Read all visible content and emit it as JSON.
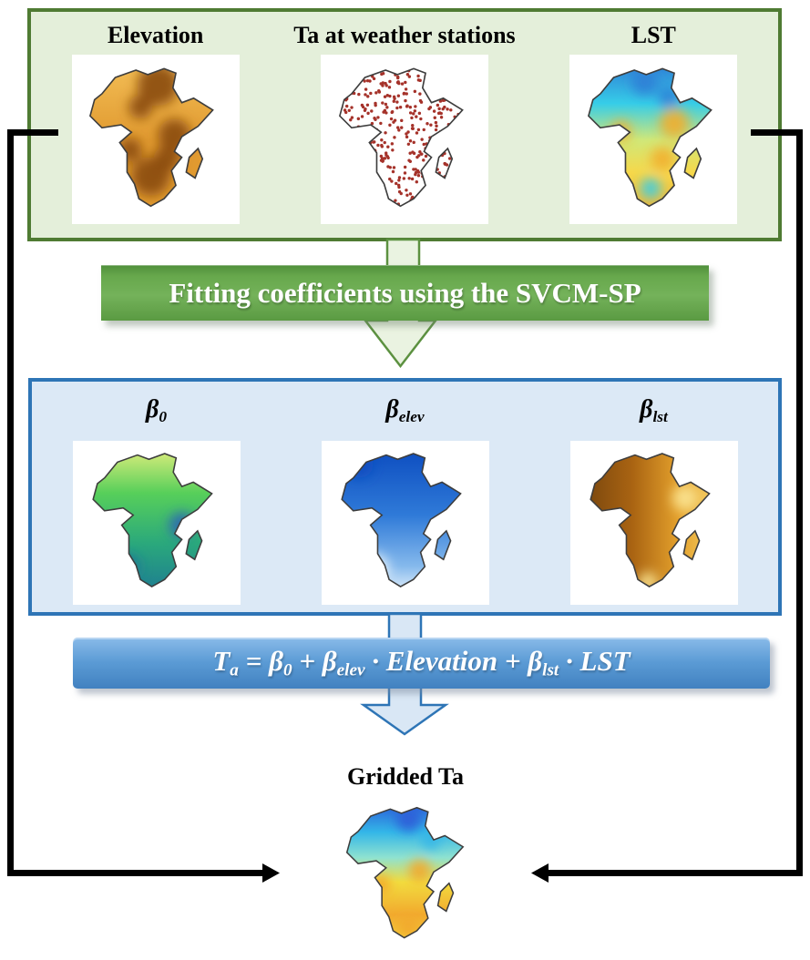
{
  "palette": {
    "green_box_border": "#4f7b33",
    "green_box_fill": "#e4efda",
    "green_banner": "#67a84c",
    "green_arrow_fill": "#eaf3e1",
    "green_arrow_stroke": "#5c9140",
    "blue_box_border": "#2e75b6",
    "blue_box_fill": "#dce9f6",
    "blue_banner": "#5b9bd5",
    "blue_arrow_fill": "#d9e7f5",
    "blue_arrow_stroke": "#2e75b6",
    "connector_black": "#000000",
    "station_dot": "#a5322a"
  },
  "inputs": {
    "maps": [
      {
        "label": "Elevation",
        "type": "elevation",
        "palette": [
          "#f2bd55",
          "#e19a30",
          "#8a4a10"
        ]
      },
      {
        "label": "Ta at weather stations",
        "type": "stations",
        "palette": [
          "#ffffff",
          "#a5322a"
        ]
      },
      {
        "label": "LST",
        "type": "lst",
        "palette": [
          "#2f7fd6",
          "#36cde8",
          "#cfe87a",
          "#f2ae2e",
          "#f6d84a"
        ]
      }
    ]
  },
  "process_banner": {
    "label": "Fitting coefficients using the SVCM-SP"
  },
  "coefficients": {
    "maps": [
      {
        "label": [
          {
            "t": "β",
            "sub": "0"
          }
        ],
        "type": "beta0",
        "palette": [
          "#dced7c",
          "#57cf5a",
          "#2aa87c",
          "#1d7a93",
          "#2b66b4"
        ]
      },
      {
        "label": [
          {
            "t": "β",
            "sub": "elev"
          }
        ],
        "type": "beta_elev",
        "palette": [
          "#0d4dc0",
          "#2f7ad8",
          "#85b9ec",
          "#ecf5fd"
        ]
      },
      {
        "label": [
          {
            "t": "β",
            "sub": "lst"
          }
        ],
        "type": "beta_lst",
        "palette": [
          "#7c480e",
          "#aa6412",
          "#e3a02c",
          "#f6cf63",
          "#fbe492"
        ]
      }
    ]
  },
  "formula": {
    "segments": [
      {
        "t": "T",
        "sub": "a"
      },
      {
        "t": " = "
      },
      {
        "t": "β",
        "sub": "0"
      },
      {
        "t": " + "
      },
      {
        "t": "β",
        "sub": "elev"
      },
      {
        "t": " · "
      },
      {
        "t": "Elevation"
      },
      {
        "t": " + "
      },
      {
        "t": "β",
        "sub": "lst"
      },
      {
        "t": " · "
      },
      {
        "t": "LST"
      }
    ]
  },
  "output": {
    "label": "Gridded Ta",
    "type": "gridded",
    "palette": [
      "#2b5cd8",
      "#33b6e8",
      "#8fe2d0",
      "#f2dc3f",
      "#f2a92e"
    ]
  }
}
